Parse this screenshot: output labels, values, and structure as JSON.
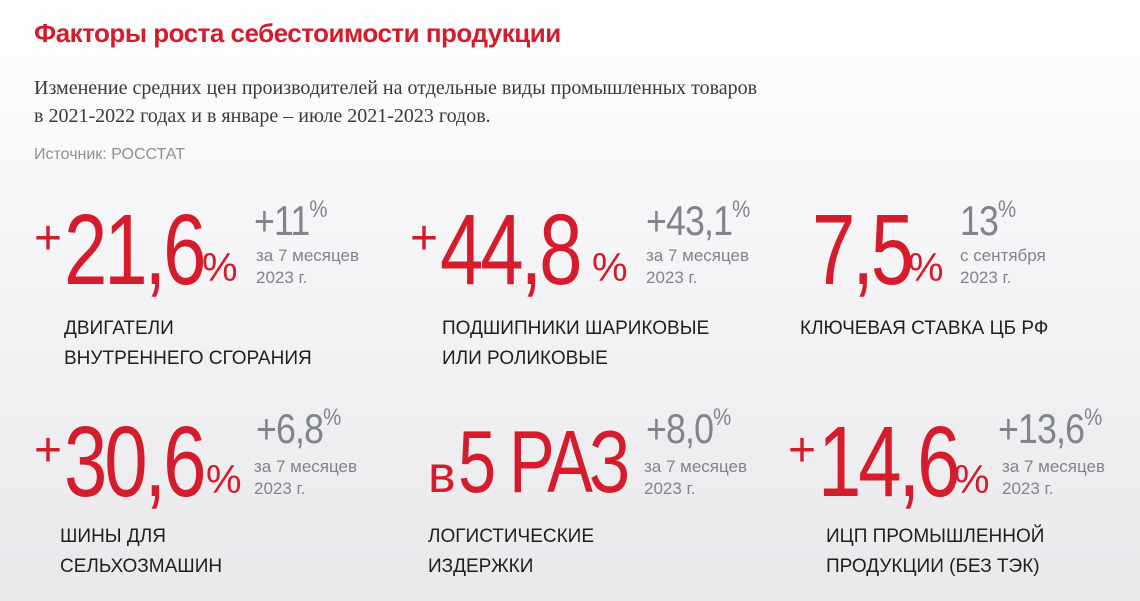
{
  "title": "Факторы роста себестоимости продукции",
  "subtitle_line1": "Изменение средних цен производителей на отдельные виды промышленных товаров",
  "subtitle_line2": "в 2021-2022 годах и в январе – июле 2021-2023 годов.",
  "source": "Источник: РОССТАТ",
  "colors": {
    "accent": "#d51c2c",
    "muted": "#7f858b",
    "text": "#1f1f1f"
  },
  "cards": [
    {
      "prefix": "+",
      "value": "21,6",
      "unit": "%",
      "side_value": "+11",
      "side_unit": "%",
      "note1": "за 7 месяцев",
      "note2": "2023 г.",
      "label1": "ДВИГАТЕЛИ",
      "label2": "ВНУТРЕННЕГО СГОРАНИЯ"
    },
    {
      "prefix": "+",
      "value": "44,8",
      "unit": "%",
      "side_value": "+43,1",
      "side_unit": "%",
      "note1": "за 7 месяцев",
      "note2": "2023 г.",
      "label1": "ПОДШИПНИКИ ШАРИКОВЫЕ",
      "label2": "ИЛИ РОЛИКОВЫЕ"
    },
    {
      "prefix": "",
      "value": "7,5",
      "unit": "%",
      "side_value": "13",
      "side_unit": "%",
      "note1": "с сентября",
      "note2": "2023 г.",
      "label1": "КЛЮЧЕВАЯ СТАВКА ЦБ РФ",
      "label2": ""
    },
    {
      "prefix": "+",
      "value": "30,6",
      "unit": "%",
      "side_value": "+6,8",
      "side_unit": "%",
      "note1": "за 7 месяцев",
      "note2": "2023 г.",
      "label1": "ШИНЫ ДЛЯ",
      "label2": "СЕЛЬХОЗМАШИН"
    },
    {
      "prefix": "в",
      "value": "5 РАЗ",
      "unit": "",
      "side_value": "+8,0",
      "side_unit": "%",
      "note1": "за 7 месяцев",
      "note2": "2023 г.",
      "label1": "ЛОГИСТИЧЕСКИЕ",
      "label2": "ИЗДЕРЖКИ"
    },
    {
      "prefix": "+",
      "value": "14,6",
      "unit": "%",
      "side_value": "+13,6",
      "side_unit": "%",
      "note1": "за 7 месяцев",
      "note2": "2023 г.",
      "label1": "ИЦП ПРОМЫШЛЕННОЙ",
      "label2": "ПРОДУКЦИИ (БЕЗ ТЭК)"
    }
  ]
}
